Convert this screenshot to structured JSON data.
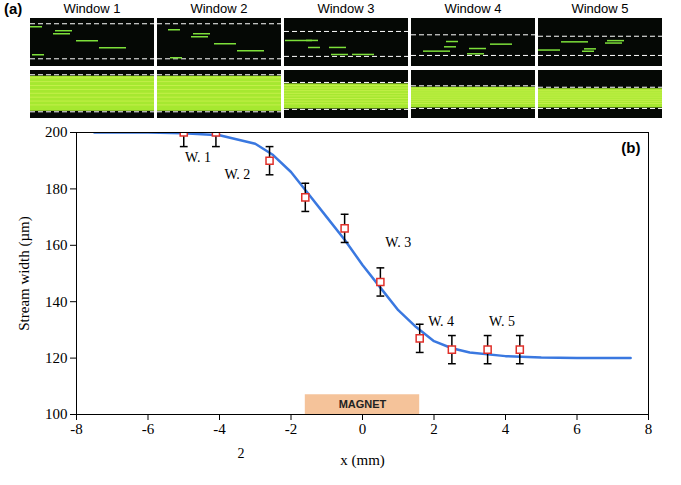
{
  "panel_a": {
    "label": "(a)",
    "windows": [
      "Window 1",
      "Window 2",
      "Window 3",
      "Window 4",
      "Window 5"
    ]
  },
  "chart_data": {
    "type": "scatter",
    "panel_label": "(b)",
    "xlabel": "x (mm)",
    "ylabel": "Stream width (µm)",
    "xlim": [
      -8,
      8
    ],
    "xticks": [
      -8,
      -6,
      -4,
      -2,
      0,
      2,
      4,
      6,
      8
    ],
    "ylim": [
      100,
      200
    ],
    "yticks": [
      100,
      120,
      140,
      160,
      180,
      200
    ],
    "grid": false,
    "series": [
      {
        "type": "line",
        "color": "#3a78e0",
        "line_style": "solid",
        "x": [
          -7.5,
          -6,
          -5,
          -4,
          -3,
          -2.5,
          -2,
          -1.5,
          -1,
          -0.5,
          0,
          0.5,
          1,
          1.5,
          2,
          2.5,
          3,
          4,
          5,
          6,
          7.5
        ],
        "values": [
          200,
          200,
          199.7,
          199,
          196,
          192,
          186,
          178,
          170,
          162,
          153,
          145,
          137,
          131,
          126,
          123.5,
          122,
          120.7,
          120.2,
          120,
          120
        ]
      },
      {
        "type": "scatter",
        "color": "#e0302a",
        "marker": "square",
        "x": [
          -5,
          -4.1,
          -2.6,
          -1.6,
          -0.5,
          0.5,
          1.6,
          2.5,
          3.5,
          4.4
        ],
        "values": [
          200,
          200,
          190,
          177,
          166,
          147,
          127,
          123,
          123,
          123
        ],
        "error": [
          5,
          5,
          5,
          5,
          5,
          5,
          5,
          5,
          5,
          5
        ]
      }
    ],
    "magnet": {
      "label": "MAGNET",
      "x": [
        -1.6,
        1.6
      ],
      "color": "#f5c39a"
    },
    "annotations": [
      {
        "text": "W. 1",
        "x": -4.6,
        "y": 191
      },
      {
        "text": "W. 2",
        "x": -3.5,
        "y": 185
      },
      {
        "text": "W. 3",
        "x": 1.0,
        "y": 161
      },
      {
        "text": "W. 4",
        "x": 2.2,
        "y": 133
      },
      {
        "text": "W. 5",
        "x": 3.9,
        "y": 133
      },
      {
        "text": "2",
        "x": -3.4,
        "y": 86
      }
    ]
  }
}
